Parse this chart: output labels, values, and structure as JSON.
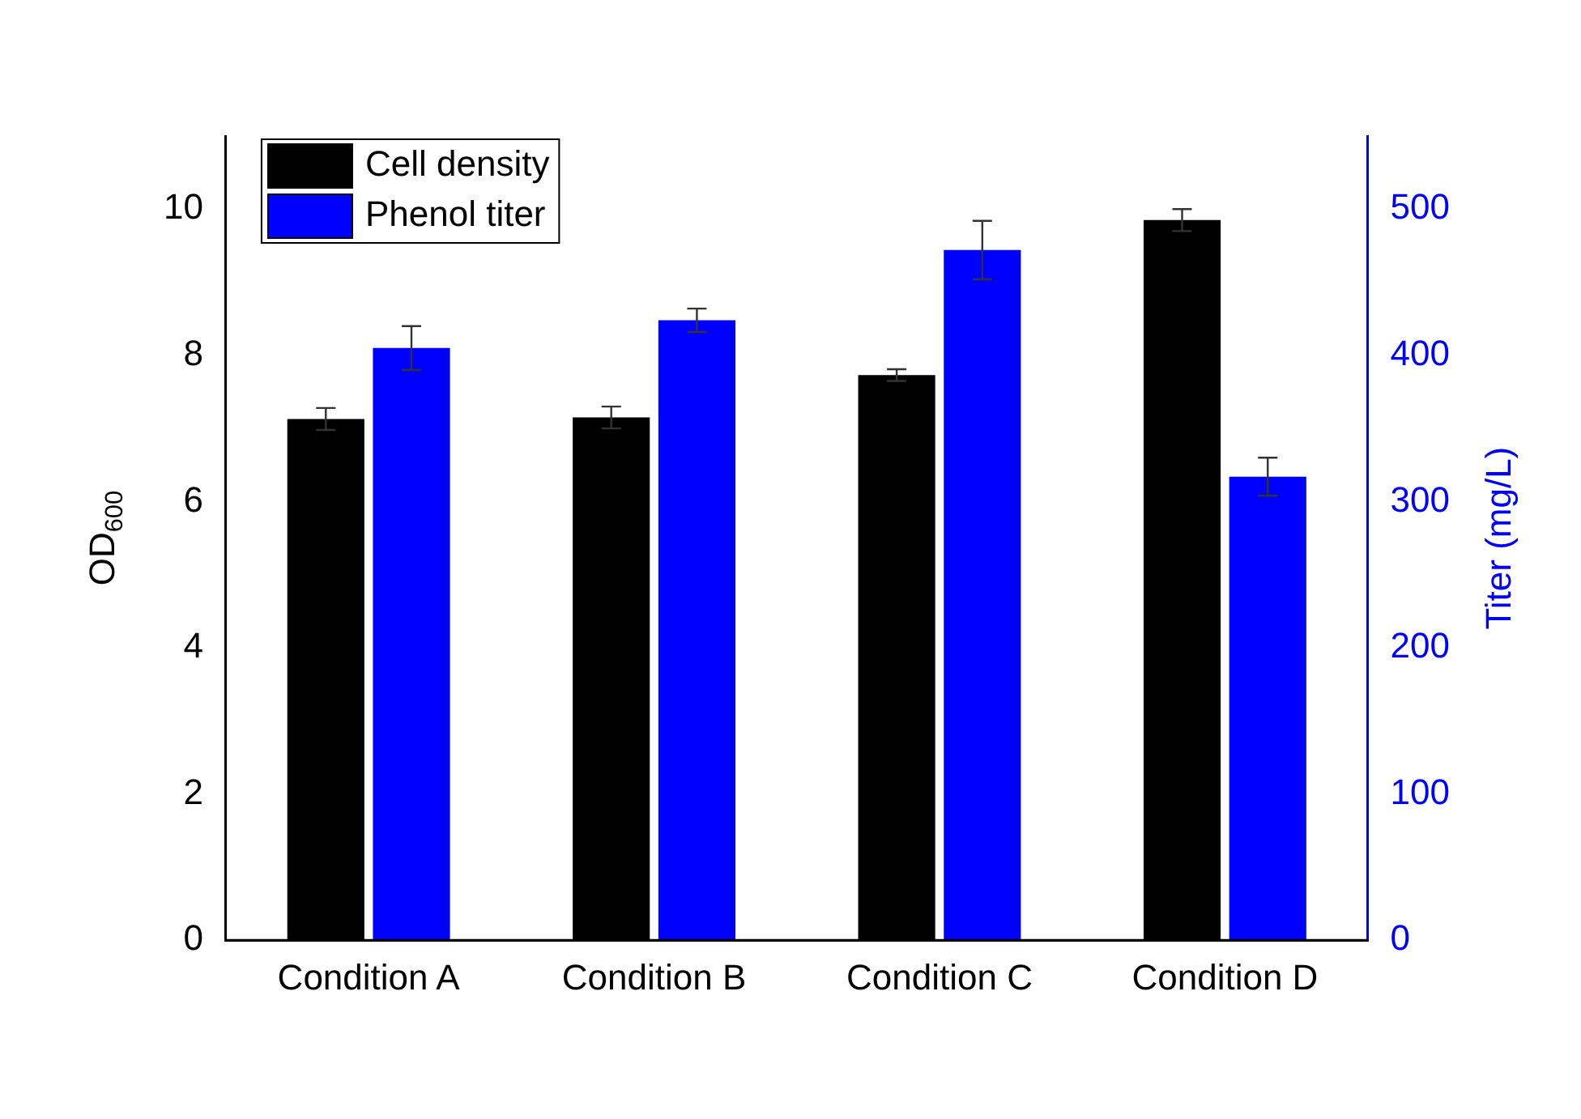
{
  "chart_data": {
    "type": "bar",
    "categories": [
      "Condition A",
      "Condition B",
      "Condition C",
      "Condition D"
    ],
    "ylabel": "OD$_{600}$",
    "y2label": "Titer (mg/L)",
    "ylim": [
      0,
      11
    ],
    "yticks": [
      0,
      2,
      4,
      6,
      8,
      10
    ],
    "y2lim": [
      0,
      550
    ],
    "y2ticks": [
      0,
      100,
      200,
      300,
      400,
      500
    ],
    "series": [
      {
        "name": "Cell density",
        "color": "#000000",
        "axis": "y",
        "values": [
          7.13,
          7.15,
          7.73,
          9.85
        ],
        "errors": [
          0.15,
          0.15,
          0.08,
          0.15
        ]
      },
      {
        "name": "Phenol titer",
        "color": "#0000ff",
        "axis": "y2",
        "values": [
          405,
          424,
          472,
          317
        ],
        "errors": [
          15,
          8,
          20,
          13
        ]
      }
    ],
    "legend": "top left",
    "grid": false
  }
}
